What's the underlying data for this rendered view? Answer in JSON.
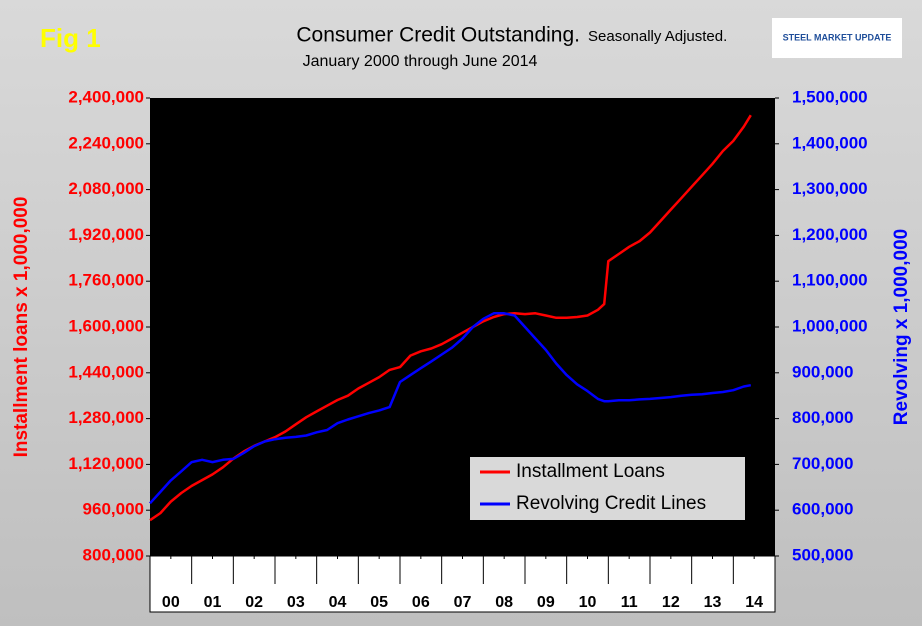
{
  "chart_data": {
    "type": "line",
    "figure_label": "Fig 1",
    "title": "Consumer Credit Outstanding.",
    "title_note": "Seasonally Adjusted.",
    "subtitle": "January 2000 through June 2014",
    "logo": "STEEL MARKET UPDATE",
    "ylabel": "Installment loans x 1,000,000",
    "y2label": "Revolving x 1,000,000",
    "x": [
      2000,
      2000.25,
      2000.5,
      2000.75,
      2001,
      2001.25,
      2001.5,
      2001.75,
      2002,
      2002.25,
      2002.5,
      2002.75,
      2003,
      2003.25,
      2003.5,
      2003.75,
      2004,
      2004.25,
      2004.5,
      2004.75,
      2005,
      2005.25,
      2005.5,
      2005.75,
      2006,
      2006.25,
      2006.5,
      2006.75,
      2007,
      2007.25,
      2007.5,
      2007.75,
      2008,
      2008.25,
      2008.5,
      2008.75,
      2009,
      2009.25,
      2009.5,
      2009.75,
      2010,
      2010.25,
      2010.5,
      2010.75,
      2010.9,
      2011,
      2011.25,
      2011.5,
      2011.75,
      2012,
      2012.25,
      2012.5,
      2012.75,
      2013,
      2013.25,
      2013.5,
      2013.75,
      2014,
      2014.25,
      2014.42
    ],
    "xlim": [
      2000,
      2015
    ],
    "xticks": [
      {
        "value": 2000.5,
        "label": "00"
      },
      {
        "value": 2001.5,
        "label": "01"
      },
      {
        "value": 2002.5,
        "label": "02"
      },
      {
        "value": 2003.5,
        "label": "03"
      },
      {
        "value": 2004.5,
        "label": "04"
      },
      {
        "value": 2005.5,
        "label": "05"
      },
      {
        "value": 2006.5,
        "label": "06"
      },
      {
        "value": 2007.5,
        "label": "07"
      },
      {
        "value": 2008.5,
        "label": "08"
      },
      {
        "value": 2009.5,
        "label": "09"
      },
      {
        "value": 2010.5,
        "label": "10"
      },
      {
        "value": 2011.5,
        "label": "11"
      },
      {
        "value": 2012.5,
        "label": "12"
      },
      {
        "value": 2013.5,
        "label": "13"
      },
      {
        "value": 2014.5,
        "label": "14"
      }
    ],
    "ylim": [
      800000,
      2400000
    ],
    "yticks": [
      {
        "value": 800000,
        "label": "800,000"
      },
      {
        "value": 960000,
        "label": "960,000"
      },
      {
        "value": 1120000,
        "label": "1,120,000"
      },
      {
        "value": 1280000,
        "label": "1,280,000"
      },
      {
        "value": 1440000,
        "label": "1,440,000"
      },
      {
        "value": 1600000,
        "label": "1,600,000"
      },
      {
        "value": 1760000,
        "label": "1,760,000"
      },
      {
        "value": 1920000,
        "label": "1,920,000"
      },
      {
        "value": 2080000,
        "label": "2,080,000"
      },
      {
        "value": 2240000,
        "label": "2,240,000"
      },
      {
        "value": 2400000,
        "label": "2,400,000"
      }
    ],
    "y2lim": [
      500000,
      1500000
    ],
    "y2ticks": [
      {
        "value": 500000,
        "label": "500,000"
      },
      {
        "value": 600000,
        "label": "600,000"
      },
      {
        "value": 700000,
        "label": "700,000"
      },
      {
        "value": 800000,
        "label": "800,000"
      },
      {
        "value": 900000,
        "label": "900,000"
      },
      {
        "value": 1000000,
        "label": "1,000,000"
      },
      {
        "value": 1100000,
        "label": "1,100,000"
      },
      {
        "value": 1200000,
        "label": "1,200,000"
      },
      {
        "value": 1300000,
        "label": "1,300,000"
      },
      {
        "value": 1400000,
        "label": "1,400,000"
      },
      {
        "value": 1500000,
        "label": "1,500,000"
      }
    ],
    "legend": "lower right",
    "series": [
      {
        "name": "Installment Loans",
        "color": "#ff0000",
        "values": [
          925000,
          950000,
          990000,
          1020000,
          1045000,
          1065000,
          1085000,
          1110000,
          1140000,
          1165000,
          1185000,
          1200000,
          1215000,
          1235000,
          1260000,
          1285000,
          1305000,
          1325000,
          1345000,
          1360000,
          1385000,
          1405000,
          1425000,
          1450000,
          1460000,
          1500000,
          1515000,
          1525000,
          1540000,
          1560000,
          1580000,
          1600000,
          1620000,
          1635000,
          1645000,
          1648000,
          1645000,
          1648000,
          1640000,
          1632000,
          1632000,
          1635000,
          1640000,
          1660000,
          1680000,
          1830000,
          1855000,
          1880000,
          1900000,
          1930000,
          1970000,
          2010000,
          2050000,
          2090000,
          2130000,
          2170000,
          2215000,
          2250000,
          2300000,
          2340000
        ]
      },
      {
        "name": "Revolving Credit Lines",
        "color": "#0000ff",
        "axis": "y2",
        "values": [
          615000,
          640000,
          665000,
          685000,
          705000,
          710000,
          705000,
          710000,
          712000,
          725000,
          740000,
          750000,
          755000,
          758000,
          760000,
          763000,
          770000,
          775000,
          790000,
          798000,
          805000,
          812000,
          818000,
          825000,
          880000,
          895000,
          910000,
          925000,
          940000,
          955000,
          975000,
          1000000,
          1018000,
          1030000,
          1030000,
          1025000,
          1000000,
          975000,
          950000,
          920000,
          895000,
          875000,
          860000,
          843000,
          838000,
          838000,
          840000,
          840000,
          842000,
          843000,
          845000,
          847000,
          850000,
          852000,
          853000,
          856000,
          858000,
          862000,
          870000,
          873000
        ]
      }
    ]
  }
}
